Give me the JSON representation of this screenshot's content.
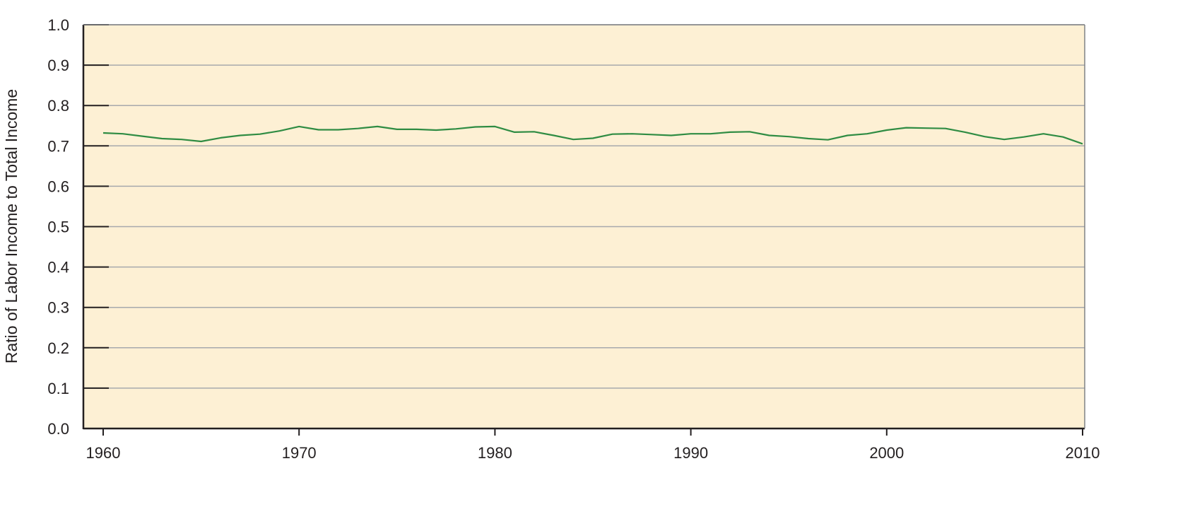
{
  "chart_data": {
    "type": "line",
    "title": "",
    "xlabel": "",
    "ylabel": "Ratio of Labor Income to Total Income",
    "xlim": [
      1959,
      2010
    ],
    "ylim": [
      0.0,
      1.0
    ],
    "grid": "horizontal",
    "x_ticks": [
      "1960",
      "1970",
      "1980",
      "1990",
      "2000",
      "2010"
    ],
    "y_ticks": [
      "0.0",
      "0.1",
      "0.2",
      "0.3",
      "0.4",
      "0.5",
      "0.6",
      "0.7",
      "0.8",
      "0.9",
      "1.0"
    ],
    "colors": {
      "background": "#fdf0d4",
      "grid": "#a7a9ac",
      "line": "#2f8c43",
      "axis": "#231f20"
    },
    "series": [
      {
        "x": [
          1960,
          1961,
          1962,
          1963,
          1964,
          1965,
          1966,
          1967,
          1968,
          1969,
          1970,
          1971,
          1972,
          1973,
          1974,
          1975,
          1976,
          1977,
          1978,
          1979,
          1980,
          1981,
          1982,
          1983,
          1984,
          1985,
          1986,
          1987,
          1988,
          1989,
          1990,
          1991,
          1992,
          1993,
          1994,
          1995,
          1996,
          1997,
          1998,
          1999,
          2000,
          2001,
          2002,
          2003,
          2004,
          2005,
          2006,
          2007,
          2008,
          2009,
          2010
        ],
        "values": [
          0.732,
          0.73,
          0.724,
          0.718,
          0.716,
          0.711,
          0.72,
          0.726,
          0.729,
          0.737,
          0.748,
          0.74,
          0.74,
          0.743,
          0.748,
          0.741,
          0.741,
          0.739,
          0.742,
          0.747,
          0.748,
          0.734,
          0.735,
          0.726,
          0.716,
          0.719,
          0.729,
          0.73,
          0.728,
          0.726,
          0.73,
          0.73,
          0.734,
          0.735,
          0.726,
          0.723,
          0.718,
          0.715,
          0.726,
          0.73,
          0.739,
          0.745,
          0.744,
          0.743,
          0.734,
          0.723,
          0.716,
          0.722,
          0.73,
          0.722,
          0.705
        ]
      }
    ]
  }
}
